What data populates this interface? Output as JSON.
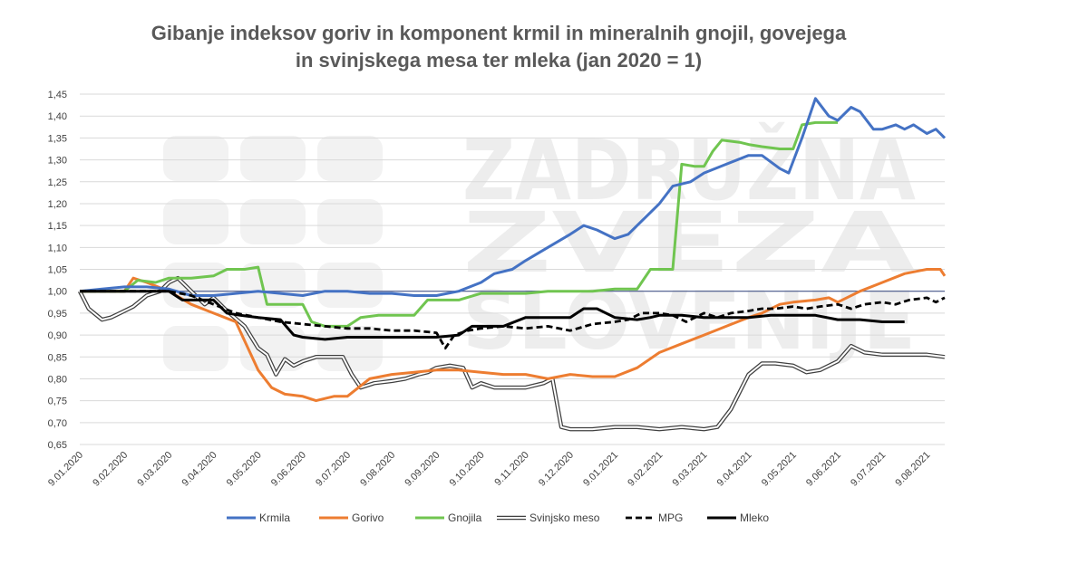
{
  "chart_data": {
    "type": "line",
    "title_line1": "Gibanje indeksov goriv in komponent krmil in mineralnih gnojil, govejega",
    "title_line2": "in svinjskega mesa ter mleka (jan 2020 = 1)",
    "watermark": [
      "ZADRUŽNA",
      "ZVEZA",
      "SLOVENIJE"
    ],
    "ylim": [
      0.65,
      1.45
    ],
    "yticks": [
      "1,45",
      "1,40",
      "1,35",
      "1,30",
      "1,25",
      "1,20",
      "1,15",
      "1,10",
      "1,05",
      "1,00",
      "0,95",
      "0,90",
      "0,85",
      "0,80",
      "0,75",
      "0,70",
      "0,65"
    ],
    "xticks": [
      "9.01.2020",
      "9.02.2020",
      "9.03.2020",
      "9.04.2020",
      "9.05.2020",
      "9.06.2020",
      "9.07.2020",
      "9.08.2020",
      "9.09.2020",
      "9.10.2020",
      "9.11.2020",
      "9.12.2020",
      "9.01.2021",
      "9.02.2021",
      "9.03.2021",
      "9.04.2021",
      "9.05.2021",
      "9.06.2021",
      "9.07.2021",
      "9.08.2021"
    ],
    "reference_line": 1.0,
    "legend_position": "bottom",
    "series": [
      {
        "name": "Krmila",
        "color": "#4472C4",
        "style": "solid",
        "points": [
          [
            0,
            1.0
          ],
          [
            0.5,
            1.005
          ],
          [
            1,
            1.01
          ],
          [
            1.5,
            1.01
          ],
          [
            2,
            1.005
          ],
          [
            2.5,
            0.99
          ],
          [
            3,
            0.99
          ],
          [
            3.5,
            0.995
          ],
          [
            4,
            1.0
          ],
          [
            4.5,
            0.995
          ],
          [
            5,
            0.99
          ],
          [
            5.5,
            1.0
          ],
          [
            6,
            1.0
          ],
          [
            6.5,
            0.995
          ],
          [
            7,
            0.995
          ],
          [
            7.5,
            0.99
          ],
          [
            8,
            0.99
          ],
          [
            8.5,
            1.0
          ],
          [
            9,
            1.02
          ],
          [
            9.3,
            1.04
          ],
          [
            9.7,
            1.05
          ],
          [
            10,
            1.07
          ],
          [
            10.5,
            1.1
          ],
          [
            11,
            1.13
          ],
          [
            11.3,
            1.15
          ],
          [
            11.6,
            1.14
          ],
          [
            12,
            1.12
          ],
          [
            12.3,
            1.13
          ],
          [
            12.6,
            1.16
          ],
          [
            13,
            1.2
          ],
          [
            13.3,
            1.24
          ],
          [
            13.7,
            1.25
          ],
          [
            14,
            1.27
          ],
          [
            14.5,
            1.29
          ],
          [
            15,
            1.31
          ],
          [
            15.3,
            1.31
          ],
          [
            15.7,
            1.28
          ],
          [
            15.9,
            1.27
          ],
          [
            16.2,
            1.35
          ],
          [
            16.5,
            1.44
          ],
          [
            16.8,
            1.4
          ],
          [
            17,
            1.39
          ],
          [
            17.3,
            1.42
          ],
          [
            17.5,
            1.41
          ],
          [
            17.8,
            1.37
          ],
          [
            18,
            1.37
          ],
          [
            18.3,
            1.38
          ],
          [
            18.5,
            1.37
          ],
          [
            18.7,
            1.38
          ],
          [
            19,
            1.36
          ],
          [
            19.2,
            1.37
          ],
          [
            19.4,
            1.35
          ]
        ]
      },
      {
        "name": "Gorivo",
        "color": "#ED7D31",
        "style": "solid",
        "points": [
          [
            0,
            1.0
          ],
          [
            0.5,
            1.0
          ],
          [
            1,
            1.0
          ],
          [
            1.2,
            1.03
          ],
          [
            1.5,
            1.02
          ],
          [
            2,
            1.0
          ],
          [
            2.5,
            0.97
          ],
          [
            3,
            0.95
          ],
          [
            3.5,
            0.93
          ],
          [
            4,
            0.82
          ],
          [
            4.3,
            0.78
          ],
          [
            4.6,
            0.765
          ],
          [
            5,
            0.76
          ],
          [
            5.3,
            0.75
          ],
          [
            5.7,
            0.76
          ],
          [
            6,
            0.76
          ],
          [
            6.5,
            0.8
          ],
          [
            7,
            0.81
          ],
          [
            7.5,
            0.815
          ],
          [
            8,
            0.82
          ],
          [
            8.5,
            0.82
          ],
          [
            9,
            0.815
          ],
          [
            9.5,
            0.81
          ],
          [
            10,
            0.81
          ],
          [
            10.5,
            0.8
          ],
          [
            11,
            0.81
          ],
          [
            11.5,
            0.805
          ],
          [
            12,
            0.805
          ],
          [
            12.5,
            0.825
          ],
          [
            13,
            0.86
          ],
          [
            13.5,
            0.88
          ],
          [
            14,
            0.9
          ],
          [
            14.5,
            0.92
          ],
          [
            15,
            0.94
          ],
          [
            15.3,
            0.95
          ],
          [
            15.7,
            0.97
          ],
          [
            16,
            0.975
          ],
          [
            16.5,
            0.98
          ],
          [
            16.8,
            0.985
          ],
          [
            17,
            0.975
          ],
          [
            17.5,
            1.0
          ],
          [
            18,
            1.02
          ],
          [
            18.5,
            1.04
          ],
          [
            19,
            1.05
          ],
          [
            19.3,
            1.05
          ],
          [
            19.4,
            1.035
          ]
        ]
      },
      {
        "name": "Gnojila",
        "color": "#70C550",
        "style": "solid",
        "points": [
          [
            0,
            1.0
          ],
          [
            0.5,
            1.0
          ],
          [
            1,
            1.0
          ],
          [
            1.3,
            1.025
          ],
          [
            1.7,
            1.02
          ],
          [
            2,
            1.03
          ],
          [
            2.5,
            1.03
          ],
          [
            3,
            1.035
          ],
          [
            3.3,
            1.05
          ],
          [
            3.7,
            1.05
          ],
          [
            4,
            1.055
          ],
          [
            4.2,
            0.97
          ],
          [
            4.5,
            0.97
          ],
          [
            5,
            0.97
          ],
          [
            5.2,
            0.93
          ],
          [
            5.5,
            0.92
          ],
          [
            6,
            0.92
          ],
          [
            6.3,
            0.94
          ],
          [
            6.7,
            0.945
          ],
          [
            7,
            0.945
          ],
          [
            7.5,
            0.945
          ],
          [
            7.8,
            0.98
          ],
          [
            8,
            0.98
          ],
          [
            8.5,
            0.98
          ],
          [
            9,
            0.995
          ],
          [
            9.5,
            0.995
          ],
          [
            10,
            0.995
          ],
          [
            10.5,
            1.0
          ],
          [
            11,
            1.0
          ],
          [
            11.5,
            1.0
          ],
          [
            12,
            1.005
          ],
          [
            12.5,
            1.005
          ],
          [
            12.8,
            1.05
          ],
          [
            13,
            1.05
          ],
          [
            13.3,
            1.05
          ],
          [
            13.5,
            1.29
          ],
          [
            13.8,
            1.285
          ],
          [
            14,
            1.285
          ],
          [
            14.2,
            1.32
          ],
          [
            14.4,
            1.345
          ],
          [
            14.8,
            1.34
          ],
          [
            15,
            1.335
          ],
          [
            15.3,
            1.33
          ],
          [
            15.7,
            1.325
          ],
          [
            16,
            1.325
          ],
          [
            16.2,
            1.38
          ],
          [
            16.5,
            1.385
          ],
          [
            17,
            1.385
          ]
        ]
      },
      {
        "name": "Svinjsko meso",
        "color": "#404040",
        "style": "double",
        "points": [
          [
            0,
            1.0
          ],
          [
            0.2,
            0.96
          ],
          [
            0.5,
            0.935
          ],
          [
            0.7,
            0.94
          ],
          [
            1,
            0.955
          ],
          [
            1.2,
            0.965
          ],
          [
            1.5,
            0.99
          ],
          [
            1.8,
            1.0
          ],
          [
            2,
            1.02
          ],
          [
            2.2,
            1.03
          ],
          [
            2.5,
            1.0
          ],
          [
            2.8,
            0.97
          ],
          [
            3,
            0.985
          ],
          [
            3.3,
            0.955
          ],
          [
            3.7,
            0.92
          ],
          [
            4,
            0.87
          ],
          [
            4.2,
            0.855
          ],
          [
            4.4,
            0.81
          ],
          [
            4.6,
            0.845
          ],
          [
            4.8,
            0.83
          ],
          [
            5,
            0.84
          ],
          [
            5.3,
            0.85
          ],
          [
            5.6,
            0.85
          ],
          [
            5.9,
            0.85
          ],
          [
            6.1,
            0.81
          ],
          [
            6.3,
            0.78
          ],
          [
            6.6,
            0.79
          ],
          [
            7,
            0.795
          ],
          [
            7.3,
            0.8
          ],
          [
            7.6,
            0.81
          ],
          [
            7.8,
            0.815
          ],
          [
            8,
            0.825
          ],
          [
            8.3,
            0.83
          ],
          [
            8.6,
            0.825
          ],
          [
            8.8,
            0.78
          ],
          [
            9,
            0.79
          ],
          [
            9.3,
            0.78
          ],
          [
            9.7,
            0.78
          ],
          [
            10,
            0.78
          ],
          [
            10.4,
            0.79
          ],
          [
            10.6,
            0.8
          ],
          [
            10.8,
            0.69
          ],
          [
            11,
            0.685
          ],
          [
            11.5,
            0.685
          ],
          [
            12,
            0.69
          ],
          [
            12.5,
            0.69
          ],
          [
            13,
            0.685
          ],
          [
            13.5,
            0.69
          ],
          [
            14,
            0.685
          ],
          [
            14.3,
            0.69
          ],
          [
            14.6,
            0.73
          ],
          [
            15,
            0.81
          ],
          [
            15.3,
            0.835
          ],
          [
            15.6,
            0.835
          ],
          [
            16,
            0.83
          ],
          [
            16.3,
            0.815
          ],
          [
            16.6,
            0.82
          ],
          [
            17,
            0.84
          ],
          [
            17.3,
            0.875
          ],
          [
            17.6,
            0.86
          ],
          [
            18,
            0.855
          ],
          [
            18.5,
            0.855
          ],
          [
            19,
            0.855
          ],
          [
            19.4,
            0.85
          ]
        ]
      },
      {
        "name": "MPG",
        "color": "#000000",
        "style": "dashed",
        "points": [
          [
            0,
            1.0
          ],
          [
            0.5,
            1.0
          ],
          [
            1,
            1.0
          ],
          [
            1.5,
            1.0
          ],
          [
            2,
            1.0
          ],
          [
            2.5,
            0.99
          ],
          [
            3,
            0.97
          ],
          [
            3.5,
            0.95
          ],
          [
            4,
            0.94
          ],
          [
            4.5,
            0.93
          ],
          [
            5,
            0.925
          ],
          [
            5.5,
            0.92
          ],
          [
            6,
            0.915
          ],
          [
            6.5,
            0.915
          ],
          [
            7,
            0.91
          ],
          [
            7.5,
            0.91
          ],
          [
            8,
            0.905
          ],
          [
            8.2,
            0.87
          ],
          [
            8.4,
            0.9
          ],
          [
            8.7,
            0.91
          ],
          [
            9,
            0.915
          ],
          [
            9.5,
            0.92
          ],
          [
            10,
            0.915
          ],
          [
            10.5,
            0.92
          ],
          [
            11,
            0.91
          ],
          [
            11.5,
            0.925
          ],
          [
            12,
            0.93
          ],
          [
            12.3,
            0.935
          ],
          [
            12.6,
            0.95
          ],
          [
            13,
            0.95
          ],
          [
            13.3,
            0.945
          ],
          [
            13.6,
            0.93
          ],
          [
            14,
            0.95
          ],
          [
            14.3,
            0.94
          ],
          [
            14.6,
            0.95
          ],
          [
            15,
            0.955
          ],
          [
            15.3,
            0.96
          ],
          [
            15.6,
            0.96
          ],
          [
            16,
            0.965
          ],
          [
            16.3,
            0.96
          ],
          [
            16.6,
            0.965
          ],
          [
            17,
            0.97
          ],
          [
            17.3,
            0.96
          ],
          [
            17.6,
            0.97
          ],
          [
            18,
            0.975
          ],
          [
            18.3,
            0.97
          ],
          [
            18.6,
            0.98
          ],
          [
            19,
            0.985
          ],
          [
            19.2,
            0.975
          ],
          [
            19.4,
            0.985
          ]
        ]
      },
      {
        "name": "Mleko",
        "color": "#000000",
        "style": "solid-thick",
        "points": [
          [
            0,
            1.0
          ],
          [
            0.5,
            1.0
          ],
          [
            1,
            1.0
          ],
          [
            1.5,
            1.0
          ],
          [
            2,
            1.0
          ],
          [
            2.3,
            0.98
          ],
          [
            2.7,
            0.98
          ],
          [
            3,
            0.98
          ],
          [
            3.3,
            0.95
          ],
          [
            3.6,
            0.945
          ],
          [
            4,
            0.94
          ],
          [
            4.5,
            0.935
          ],
          [
            4.8,
            0.9
          ],
          [
            5,
            0.895
          ],
          [
            5.5,
            0.89
          ],
          [
            6,
            0.895
          ],
          [
            6.5,
            0.895
          ],
          [
            7,
            0.895
          ],
          [
            7.5,
            0.895
          ],
          [
            8,
            0.895
          ],
          [
            8.5,
            0.9
          ],
          [
            8.8,
            0.92
          ],
          [
            9,
            0.92
          ],
          [
            9.5,
            0.92
          ],
          [
            10,
            0.94
          ],
          [
            10.5,
            0.94
          ],
          [
            11,
            0.94
          ],
          [
            11.3,
            0.96
          ],
          [
            11.6,
            0.96
          ],
          [
            12,
            0.94
          ],
          [
            12.5,
            0.935
          ],
          [
            12.8,
            0.94
          ],
          [
            13,
            0.945
          ],
          [
            13.5,
            0.945
          ],
          [
            14,
            0.94
          ],
          [
            14.5,
            0.94
          ],
          [
            15,
            0.94
          ],
          [
            15.5,
            0.945
          ],
          [
            16,
            0.945
          ],
          [
            16.5,
            0.945
          ],
          [
            17,
            0.935
          ],
          [
            17.5,
            0.935
          ],
          [
            18,
            0.93
          ],
          [
            18.5,
            0.93
          ]
        ]
      }
    ]
  }
}
